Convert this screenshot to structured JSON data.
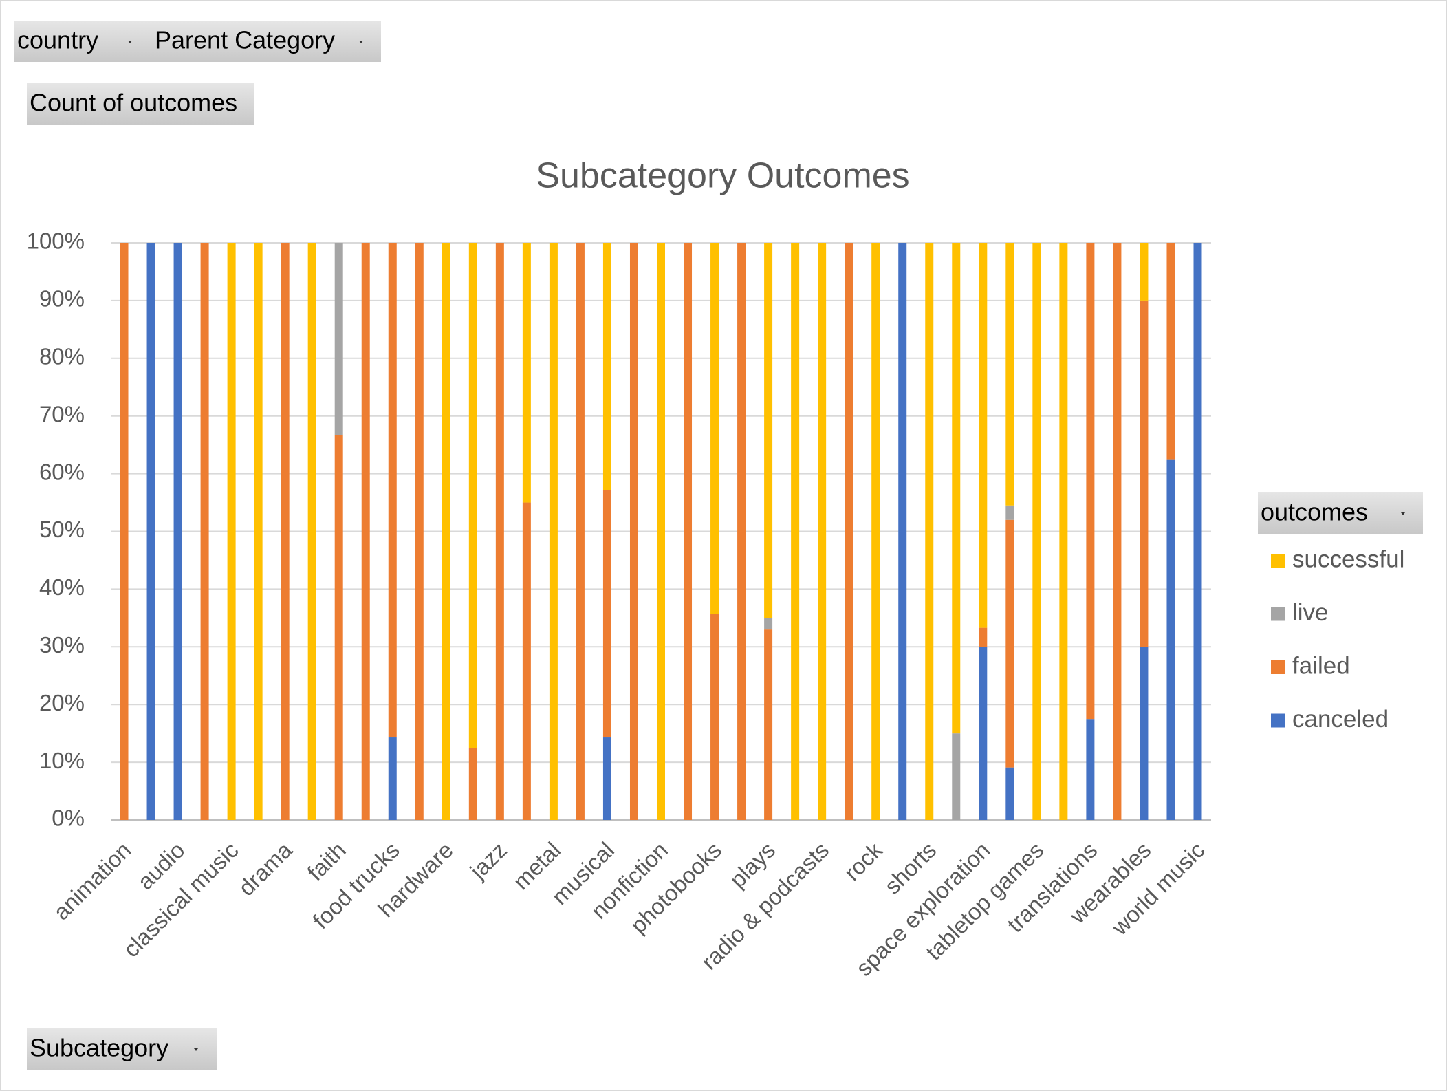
{
  "pivot_buttons": [
    "country",
    "Parent Category",
    "Count of outcomes",
    "Subcategory"
  ],
  "chart_data": {
    "type": "stacked_bar_percent",
    "title": "Subcategory Outcomes",
    "legend_title": "outcomes",
    "legend": "right",
    "grid": true,
    "categories": [
      "animation",
      null,
      "audio",
      null,
      "classical music",
      null,
      "drama",
      null,
      "faith",
      null,
      "food trucks",
      null,
      "hardware",
      null,
      "jazz",
      null,
      "metal",
      null,
      "musical",
      null,
      "nonfiction",
      null,
      "photobooks",
      null,
      "plays",
      null,
      "radio & podcasts",
      null,
      "rock",
      null,
      "shorts",
      null,
      "space exploration",
      null,
      "tabletop games",
      null,
      "translations",
      null,
      "wearables",
      null,
      "world music"
    ],
    "series": [
      {
        "name": "canceled",
        "color": "#4472c4",
        "values": [
          0,
          100,
          100,
          0,
          0,
          0,
          0,
          0,
          0,
          0,
          14.3,
          0,
          0,
          0,
          0,
          0,
          0,
          0,
          14.3,
          0,
          0,
          0,
          0,
          0,
          0,
          0,
          0,
          0,
          0,
          100,
          0,
          0,
          30,
          9.1,
          0,
          0,
          17.5,
          0,
          30,
          62.5,
          100
        ]
      },
      {
        "name": "failed",
        "color": "#ed7d31",
        "values": [
          100,
          0,
          0,
          100,
          0,
          0,
          100,
          0,
          66.7,
          100,
          85.7,
          100,
          0,
          12.5,
          100,
          55,
          0,
          100,
          42.9,
          100,
          0,
          100,
          35.7,
          100,
          33,
          0,
          0,
          100,
          0,
          0,
          0,
          0,
          3.3,
          42.9,
          0,
          0,
          82.5,
          100,
          60,
          37.5,
          0
        ]
      },
      {
        "name": "live",
        "color": "#a5a5a5",
        "values": [
          0,
          0,
          0,
          0,
          0,
          0,
          0,
          0,
          33.3,
          0,
          0,
          0,
          0,
          0,
          0,
          0,
          0,
          0,
          0,
          0,
          0,
          0,
          0,
          0,
          2,
          0,
          0,
          0,
          0,
          0,
          0,
          15,
          0,
          2.5,
          0,
          0,
          0,
          0,
          0,
          0,
          0
        ]
      },
      {
        "name": "successful",
        "color": "#ffc000",
        "values": [
          0,
          0,
          0,
          0,
          100,
          100,
          0,
          100,
          0,
          0,
          0,
          0,
          100,
          87.5,
          0,
          45,
          100,
          0,
          42.8,
          0,
          100,
          0,
          64.3,
          0,
          65,
          100,
          100,
          0,
          100,
          0,
          100,
          85,
          66.7,
          45.5,
          100,
          100,
          0,
          0,
          10,
          0,
          0
        ]
      }
    ],
    "ylim": [
      0,
      100
    ],
    "yticks": [
      {
        "value": 0,
        "label": "0%"
      },
      {
        "value": 10,
        "label": "10%"
      },
      {
        "value": 20,
        "label": "20%"
      },
      {
        "value": 30,
        "label": "30%"
      },
      {
        "value": 40,
        "label": "40%"
      },
      {
        "value": 50,
        "label": "50%"
      },
      {
        "value": 60,
        "label": "60%"
      },
      {
        "value": 70,
        "label": "70%"
      },
      {
        "value": 80,
        "label": "80%"
      },
      {
        "value": 90,
        "label": "90%"
      },
      {
        "value": 100,
        "label": "100%"
      }
    ]
  }
}
